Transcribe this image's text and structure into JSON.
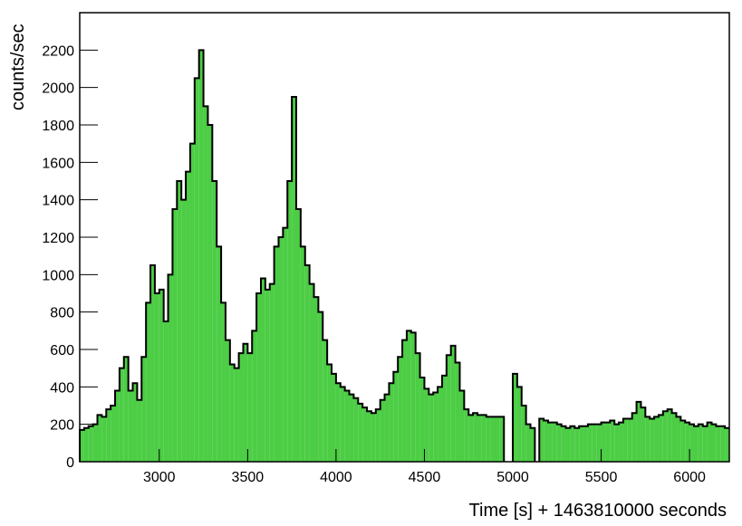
{
  "chart_data": {
    "type": "histogram",
    "x_label": "Time [s] + 1463810000 seconds",
    "y_label": "counts/sec",
    "color": "#4ccd45",
    "line_color": "#000000",
    "bins": [
      2550,
      2575,
      2600,
      2625,
      2650,
      2675,
      2700,
      2725,
      2750,
      2775,
      2800,
      2825,
      2850,
      2875,
      2900,
      2925,
      2950,
      2975,
      3000,
      3025,
      3050,
      3075,
      3100,
      3125,
      3150,
      3175,
      3200,
      3225,
      3250,
      3275,
      3300,
      3325,
      3350,
      3375,
      3400,
      3425,
      3450,
      3475,
      3500,
      3525,
      3550,
      3575,
      3600,
      3625,
      3650,
      3675,
      3700,
      3725,
      3750,
      3775,
      3800,
      3825,
      3850,
      3875,
      3900,
      3925,
      3950,
      3975,
      4000,
      4025,
      4050,
      4075,
      4100,
      4125,
      4150,
      4175,
      4200,
      4225,
      4250,
      4275,
      4300,
      4325,
      4350,
      4375,
      4400,
      4425,
      4450,
      4475,
      4500,
      4525,
      4550,
      4575,
      4600,
      4625,
      4650,
      4675,
      4700,
      4725,
      4750,
      4775,
      4800,
      4825,
      4850,
      4875,
      4900,
      4925,
      4950,
      4975,
      5000,
      5025,
      5050,
      5075,
      5100,
      5125,
      5150,
      5175,
      5200,
      5225,
      5250,
      5275,
      5300,
      5325,
      5350,
      5375,
      5400,
      5425,
      5450,
      5475,
      5500,
      5525,
      5550,
      5575,
      5600,
      5625,
      5650,
      5675,
      5700,
      5725,
      5750,
      5775,
      5800,
      5825,
      5850,
      5875,
      5900,
      5925,
      5950,
      5975,
      6000,
      6025,
      6050,
      6075,
      6100,
      6125,
      6150,
      6175,
      6200,
      6225
    ],
    "values": [
      170,
      180,
      190,
      200,
      250,
      240,
      280,
      300,
      380,
      500,
      560,
      380,
      420,
      330,
      560,
      850,
      1050,
      900,
      920,
      750,
      1000,
      1350,
      1500,
      1400,
      1550,
      1700,
      2050,
      2200,
      1900,
      1800,
      1500,
      1150,
      850,
      650,
      520,
      500,
      580,
      630,
      580,
      700,
      900,
      980,
      920,
      950,
      1150,
      1200,
      1250,
      1500,
      1950,
      1350,
      1150,
      1050,
      950,
      880,
      800,
      650,
      520,
      470,
      420,
      400,
      380,
      360,
      340,
      310,
      290,
      270,
      260,
      280,
      330,
      360,
      420,
      480,
      560,
      650,
      700,
      690,
      580,
      450,
      390,
      360,
      370,
      400,
      460,
      570,
      620,
      530,
      380,
      280,
      250,
      260,
      250,
      250,
      240,
      240,
      240,
      240,
      null,
      null,
      470,
      400,
      300,
      200,
      180,
      null,
      230,
      220,
      210,
      210,
      200,
      190,
      180,
      190,
      180,
      190,
      190,
      200,
      200,
      200,
      210,
      210,
      220,
      200,
      210,
      230,
      230,
      260,
      320,
      290,
      240,
      230,
      240,
      250,
      270,
      280,
      260,
      240,
      220,
      210,
      200,
      190,
      200,
      190,
      210,
      200,
      190,
      190,
      180
    ],
    "xlim": [
      2550,
      6225
    ],
    "ylim": [
      0,
      2400
    ],
    "xticks": [
      3000,
      3500,
      4000,
      4500,
      5000,
      5500,
      6000
    ],
    "yticks": [
      0,
      200,
      400,
      600,
      800,
      1000,
      1200,
      1400,
      1600,
      1800,
      2000,
      2200
    ]
  }
}
